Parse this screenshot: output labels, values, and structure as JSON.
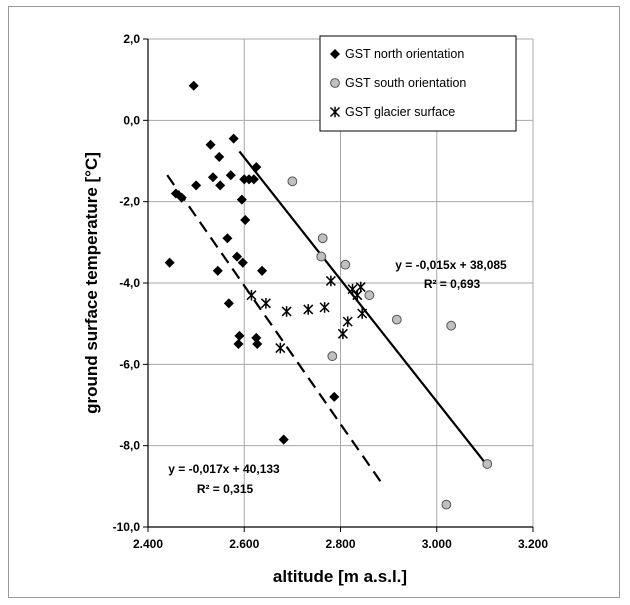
{
  "chart_data": {
    "type": "scatter",
    "xlabel": "altitude [m a.s.l.]",
    "ylabel": "ground surface temperature [°C]",
    "xlim": [
      2400,
      3200
    ],
    "ylim": [
      -10,
      2
    ],
    "x_ticks": [
      {
        "value": 2400,
        "label": "2.400"
      },
      {
        "value": 2600,
        "label": "2.600"
      },
      {
        "value": 2800,
        "label": "2.800"
      },
      {
        "value": 3000,
        "label": "3.000"
      },
      {
        "value": 3200,
        "label": "3.200"
      }
    ],
    "y_ticks": [
      {
        "value": 2,
        "label": "2,0"
      },
      {
        "value": 0,
        "label": "0,0"
      },
      {
        "value": -2,
        "label": "-2,0"
      },
      {
        "value": -4,
        "label": "-4,0"
      },
      {
        "value": -6,
        "label": "-6,0"
      },
      {
        "value": -8,
        "label": "-8,0"
      },
      {
        "value": -10,
        "label": "-10,0"
      }
    ],
    "grid": {
      "x": true,
      "y": true
    },
    "legend_position": "top-right",
    "series": [
      {
        "name": "GST north orientation",
        "marker": "diamond",
        "color": "#000000",
        "points": [
          [
            2445,
            -3.5
          ],
          [
            2458,
            -1.8
          ],
          [
            2470,
            -1.9
          ],
          [
            2495,
            0.85
          ],
          [
            2500,
            -1.6
          ],
          [
            2530,
            -0.6
          ],
          [
            2535,
            -1.4
          ],
          [
            2545,
            -3.7
          ],
          [
            2548,
            -0.9
          ],
          [
            2550,
            -1.6
          ],
          [
            2565,
            -2.9
          ],
          [
            2568,
            -4.5
          ],
          [
            2572,
            -1.35
          ],
          [
            2578,
            -0.45
          ],
          [
            2585,
            -3.35
          ],
          [
            2588,
            -5.5
          ],
          [
            2590,
            -5.3
          ],
          [
            2595,
            -1.95
          ],
          [
            2597,
            -3.5
          ],
          [
            2600,
            -1.45
          ],
          [
            2602,
            -2.45
          ],
          [
            2610,
            -1.45
          ],
          [
            2620,
            -1.45
          ],
          [
            2625,
            -1.15
          ],
          [
            2625,
            -5.35
          ],
          [
            2627,
            -5.5
          ],
          [
            2637,
            -3.7
          ],
          [
            2682,
            -7.85
          ],
          [
            2787,
            -6.8
          ]
        ]
      },
      {
        "name": "GST south orientation",
        "marker": "circle",
        "color": "#c0c0c0",
        "points": [
          [
            2700,
            -1.5
          ],
          [
            2763,
            -2.9
          ],
          [
            2760,
            -3.35
          ],
          [
            2783,
            -5.8
          ],
          [
            2810,
            -3.55
          ],
          [
            2860,
            -4.3
          ],
          [
            2917,
            -4.9
          ],
          [
            3020,
            -9.45
          ],
          [
            3030,
            -5.05
          ],
          [
            3105,
            -8.45
          ]
        ]
      },
      {
        "name": "GST glacier surface",
        "marker": "asterisk",
        "color": "#000000",
        "points": [
          [
            2615,
            -4.3
          ],
          [
            2645,
            -4.5
          ],
          [
            2675,
            -5.6
          ],
          [
            2688,
            -4.7
          ],
          [
            2733,
            -4.65
          ],
          [
            2767,
            -4.6
          ],
          [
            2780,
            -3.95
          ],
          [
            2805,
            -5.25
          ],
          [
            2815,
            -4.95
          ],
          [
            2825,
            -4.15
          ],
          [
            2835,
            -4.3
          ],
          [
            2842,
            -4.1
          ],
          [
            2845,
            -4.75
          ]
        ]
      }
    ],
    "trendlines": [
      {
        "series": "GST south orientation",
        "style": "solid",
        "slope": -0.015,
        "intercept": 38.085,
        "x_range": [
          2590,
          3105
        ],
        "equation": "y = -0,015x + 38,085",
        "r2": "R² = 0,693"
      },
      {
        "series": "GST north orientation",
        "style": "dashed",
        "slope": -0.017,
        "intercept": 40.133,
        "x_range": [
          2440,
          2885
        ],
        "equation": "y = -0,017x + 40,133",
        "r2": "R² = 0,315"
      }
    ]
  }
}
